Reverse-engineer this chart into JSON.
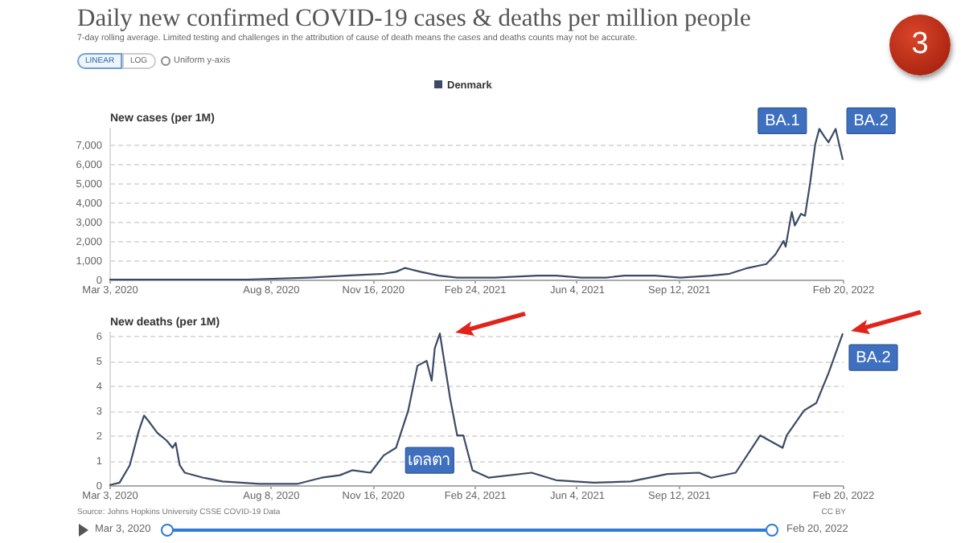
{
  "chart_data": [
    {
      "type": "line",
      "title": "Daily new confirmed COVID-19 cases & deaths per million people",
      "subtitle": "7-day rolling average. Limited testing and challenges in the attribution of cause of death means the cases and deaths counts may not be accurate.",
      "ylabel": "New cases (per 1M)",
      "legend": "top",
      "grid": "y",
      "x": [
        "2020-03-03",
        "2020-07-16",
        "2020-09-15",
        "2020-10-21",
        "2020-11-27",
        "2020-12-09",
        "2020-12-18",
        "2021-01-02",
        "2021-01-20",
        "2021-02-07",
        "2021-03-16",
        "2021-04-27",
        "2021-05-15",
        "2021-06-09",
        "2021-07-03",
        "2021-07-21",
        "2021-08-20",
        "2021-09-14",
        "2021-10-14",
        "2021-11-01",
        "2021-11-19",
        "2021-12-07",
        "2021-12-16",
        "2021-12-24",
        "2021-12-26",
        "2022-01-01",
        "2022-01-04",
        "2022-01-10",
        "2022-01-14",
        "2022-01-19",
        "2022-01-24",
        "2022-01-28",
        "2022-02-02",
        "2022-02-06",
        "2022-02-13",
        "2022-02-20"
      ],
      "series": [
        {
          "name": "Denmark",
          "color": "#3c4a66",
          "values": [
            0,
            0,
            100,
            200,
            300,
            400,
            600,
            400,
            200,
            100,
            100,
            200,
            200,
            100,
            100,
            200,
            200,
            100,
            200,
            300,
            600,
            800,
            1300,
            2000,
            1700,
            3500,
            2800,
            3400,
            3300,
            5000,
            7000,
            7800,
            7400,
            7100,
            7800,
            6200
          ]
        }
      ],
      "xlim": [
        "2020-03-03",
        "2022-02-20"
      ],
      "xticks": [
        {
          "value": "2020-03-03",
          "label": "Mar 3, 2020"
        },
        {
          "value": "2020-08-08",
          "label": "Aug 8, 2020"
        },
        {
          "value": "2020-11-16",
          "label": "Nov 16, 2020"
        },
        {
          "value": "2021-02-24",
          "label": "Feb 24, 2021"
        },
        {
          "value": "2021-06-04",
          "label": "Jun 4, 2021"
        },
        {
          "value": "2021-09-12",
          "label": "Sep 12, 2021"
        },
        {
          "value": "2022-02-20",
          "label": "Feb 20, 2022"
        }
      ],
      "ylim": [
        0,
        7900
      ],
      "yticks": [
        0,
        {
          "value": 1000,
          "label": "1,000"
        },
        {
          "value": 2000,
          "label": "2,000"
        },
        {
          "value": 3000,
          "label": "3,000"
        },
        {
          "value": 4000,
          "label": "4,000"
        },
        {
          "value": 5000,
          "label": "5,000"
        },
        {
          "value": 6000,
          "label": "6,000"
        },
        {
          "value": 7000,
          "label": "7,000"
        }
      ],
      "annotations": [
        {
          "text": "BA.1",
          "x": "2022-01-28",
          "y": 7800
        },
        {
          "text": "BA.2",
          "x": "2022-02-13",
          "y": 7800
        },
        "LINEAR",
        "LOG",
        "Uniform y-axis",
        "3"
      ]
    },
    {
      "type": "line",
      "ylabel": "New deaths (per 1M)",
      "grid": "y",
      "x": [
        "2020-03-03",
        "2020-03-13",
        "2020-03-23",
        "2020-04-01",
        "2020-04-06",
        "2020-04-10",
        "2020-04-19",
        "2020-04-28",
        "2020-05-04",
        "2020-05-07",
        "2020-05-11",
        "2020-05-16",
        "2020-06-03",
        "2020-06-22",
        "2020-07-28",
        "2020-09-03",
        "2020-09-27",
        "2020-10-15",
        "2020-10-27",
        "2020-11-14",
        "2020-11-27",
        "2020-12-09",
        "2020-12-21",
        "2020-12-30",
        "2021-01-08",
        "2021-01-13",
        "2021-01-16",
        "2021-01-21",
        "2021-01-26",
        "2021-01-31",
        "2021-02-07",
        "2021-02-13",
        "2021-02-22",
        "2021-03-10",
        "2021-04-21",
        "2021-05-15",
        "2021-06-21",
        "2021-07-27",
        "2021-09-01",
        "2021-10-02",
        "2021-10-14",
        "2021-11-07",
        "2021-12-01",
        "2021-12-23",
        "2021-12-27",
        "2022-01-13",
        "2022-01-25",
        "2022-02-06",
        "2022-02-20"
      ],
      "series": [
        {
          "color": "#3c4a66",
          "values": [
            0,
            0.1,
            0.8,
            2.2,
            2.8,
            2.6,
            2.1,
            1.8,
            1.5,
            1.7,
            0.8,
            0.5,
            0.3,
            0.15,
            0.05,
            0.05,
            0.3,
            0.4,
            0.6,
            0.5,
            1.2,
            1.5,
            3.0,
            4.8,
            5.0,
            4.2,
            5.5,
            6.1,
            4.8,
            3.5,
            2.0,
            2.0,
            0.6,
            0.3,
            0.5,
            0.2,
            0.1,
            0.15,
            0.45,
            0.5,
            0.3,
            0.5,
            2.0,
            1.5,
            2.0,
            3.0,
            3.3,
            4.5,
            6.1
          ]
        }
      ],
      "xlim": [
        "2020-03-03",
        "2022-02-20"
      ],
      "xticks": [
        {
          "value": "2020-03-03",
          "label": "Mar 3, 2020"
        },
        {
          "value": "2020-08-08",
          "label": "Aug 8, 2020"
        },
        {
          "value": "2020-11-16",
          "label": "Nov 16, 2020"
        },
        {
          "value": "2021-02-24",
          "label": "Feb 24, 2021"
        },
        {
          "value": "2021-06-04",
          "label": "Jun 4, 2021"
        },
        {
          "value": "2021-09-12",
          "label": "Sep 12, 2021"
        },
        {
          "value": "2022-02-20",
          "label": "Feb 20, 2022"
        }
      ],
      "ylim": [
        0,
        6.2
      ],
      "yticks": [
        0,
        1,
        2,
        3,
        4,
        5,
        6
      ],
      "annotations": [
        {
          "text": "BA.2",
          "x": "2022-02-20",
          "y": 6.1
        },
        {
          "text": "เดลตา",
          "x": "2021-01-11",
          "y": 1
        },
        "Source: Johns Hopkins University CSSE COVID-19 Data",
        "CC BY",
        "Mar 3, 2020",
        "Feb 20, 2022"
      ]
    }
  ]
}
